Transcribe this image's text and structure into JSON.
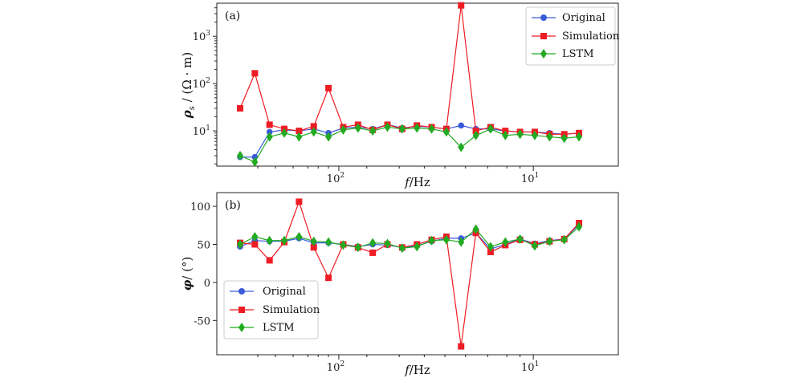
{
  "colors": {
    "Original": "#3a5bd9",
    "Simulation": "#ee1c24",
    "LSTM": "#22aa22"
  },
  "chart_data": [
    {
      "type": "line",
      "panel_label": "(a)",
      "xlabel_italic": "f",
      "xlabel_rest": "/Hz",
      "ylabel_rho": "ρ",
      "ylabel_sub": "s",
      "ylabel_rest": " / (Ω · m)",
      "yscale": "log",
      "ylim": [
        1.8,
        5000
      ],
      "yticks": [
        {
          "value": 10,
          "base": "10",
          "exp": "1"
        },
        {
          "value": 100,
          "base": "10",
          "exp": "2"
        },
        {
          "value": 1000,
          "base": "10",
          "exp": "3"
        }
      ],
      "xticks": [
        {
          "index": 6.7,
          "base": "10",
          "exp": "2"
        },
        {
          "index": 19.9,
          "base": "10",
          "exp": "1"
        }
      ],
      "legend_position": "top-right",
      "series": [
        {
          "name": "Original",
          "marker": "circle",
          "values": [
            2.8,
            2.8,
            9.5,
            10.5,
            10,
            11,
            9,
            11.5,
            12,
            11,
            13.5,
            11.5,
            12.5,
            12,
            11,
            13,
            11,
            11,
            10,
            9.5,
            9.5,
            9,
            8.5,
            9
          ]
        },
        {
          "name": "Simulation",
          "marker": "square",
          "values": [
            30,
            165,
            13.5,
            11,
            10,
            12.5,
            80,
            12,
            13.5,
            10.5,
            13.5,
            11,
            13,
            12,
            11,
            4500,
            10,
            12,
            10,
            9.5,
            9.5,
            8.5,
            8.5,
            9
          ]
        },
        {
          "name": "LSTM",
          "marker": "diamond",
          "values": [
            3,
            2.2,
            7.5,
            9,
            7.5,
            9.5,
            7.5,
            10.5,
            11.5,
            10,
            12,
            11,
            11.5,
            11,
            9.5,
            4.5,
            8,
            11,
            8,
            8.5,
            8,
            7.5,
            7,
            7.5
          ]
        }
      ]
    },
    {
      "type": "line",
      "panel_label": "(b)",
      "xlabel_italic": "f",
      "xlabel_rest": "/Hz",
      "ylabel_phi": "φ",
      "ylabel_rest": "/ (°)",
      "yscale": "linear",
      "ylim": [
        -95,
        118
      ],
      "yticks": [
        {
          "value": -50,
          "label": "-50"
        },
        {
          "value": 0,
          "label": "0"
        },
        {
          "value": 50,
          "label": "50"
        },
        {
          "value": 100,
          "label": "100"
        }
      ],
      "xticks": [
        {
          "index": 6.7,
          "base": "10",
          "exp": "2"
        },
        {
          "index": 19.9,
          "base": "10",
          "exp": "1"
        }
      ],
      "legend_position": "lower-left",
      "series": [
        {
          "name": "Original",
          "marker": "circle",
          "values": [
            47,
            55,
            54,
            54,
            58,
            52,
            52,
            50,
            47,
            50,
            49,
            46,
            48,
            54,
            58,
            58,
            65,
            44,
            50,
            57,
            51,
            55,
            57,
            76
          ]
        },
        {
          "name": "Simulation",
          "marker": "square",
          "values": [
            52,
            50,
            29,
            53,
            106,
            46,
            6,
            50,
            46,
            39,
            50,
            46,
            50,
            56,
            60,
            -84,
            65,
            40,
            49,
            56,
            50,
            54,
            57,
            78
          ]
        },
        {
          "name": "LSTM",
          "marker": "diamond",
          "values": [
            50,
            60,
            55,
            55,
            60,
            54,
            53,
            49,
            46,
            52,
            51,
            45,
            47,
            55,
            56,
            53,
            70,
            47,
            53,
            57,
            48,
            54,
            56,
            73
          ]
        }
      ]
    }
  ]
}
